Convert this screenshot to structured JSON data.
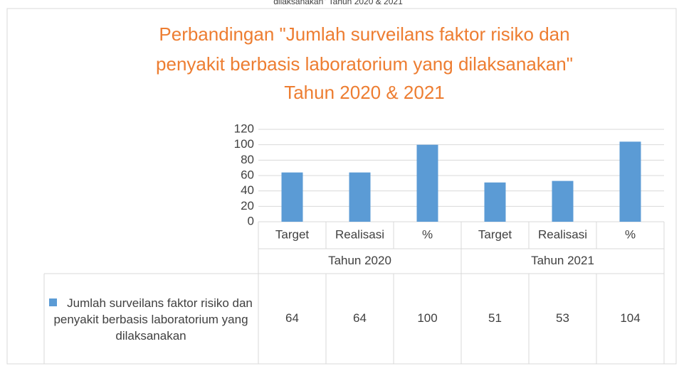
{
  "chart_data": {
    "type": "bar",
    "caption": "dilaksanakan\" Tahun 2020 & 2021",
    "title": [
      "Perbandingan \"Jumlah surveilans faktor risiko dan",
      "penyakit berbasis laboratorium yang dilaksanakan\"",
      "Tahun 2020 & 2021"
    ],
    "categories": [
      "Target",
      "Realisasi",
      "%",
      "Target",
      "Realisasi",
      "%"
    ],
    "groups": [
      "Tahun 2020",
      "Tahun 2021"
    ],
    "series": [
      {
        "name": "Jumlah surveilans faktor risiko dan penyakit berbasis laboratorium yang dilaksanakan",
        "color": "#5B9BD5",
        "values": [
          64,
          64,
          100,
          51,
          53,
          104
        ]
      }
    ],
    "ylim": [
      0,
      120
    ],
    "yticks": [
      0,
      20,
      40,
      60,
      80,
      100,
      120
    ],
    "grid": true
  }
}
